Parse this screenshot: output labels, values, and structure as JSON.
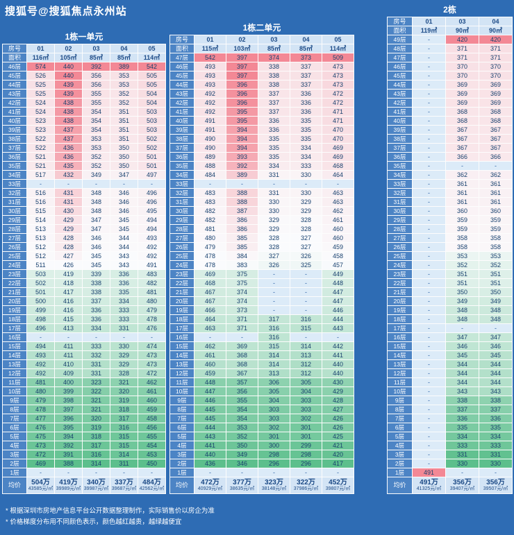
{
  "watermark": "搜狐号@搜狐焦点永州站",
  "labels": {
    "room": "房号",
    "area": "面积",
    "avg": "均价"
  },
  "colors": {
    "background": "#2e6cb4",
    "header_blue": "#4c84c5",
    "header_pale": "#d3e4f5",
    "empty_cell": "#dcebf8",
    "high_price": "#f38895",
    "mid_price": "#fafbfd",
    "low_price": "#5cbf8c"
  },
  "notes": [
    "* 根据深圳市房地产信息平台公开数据整理制作，实际销售价以房企为准",
    "* 价格梯度分布用不同颜色表示，颜色越红越贵，越绿越便宜"
  ],
  "chart_data": [
    {
      "type": "heatmap",
      "title": "1栋一单元",
      "rooms": [
        "01",
        "02",
        "03",
        "04",
        "05"
      ],
      "areas": [
        "116㎡",
        "105㎡",
        "85㎡",
        "85㎡",
        "114㎡"
      ],
      "rows": [
        [
          "46层",
          574,
          440,
          392,
          389,
          542
        ],
        [
          "45层",
          526,
          440,
          356,
          353,
          505
        ],
        [
          "44层",
          525,
          439,
          356,
          353,
          505
        ],
        [
          "43层",
          525,
          439,
          355,
          352,
          504
        ],
        [
          "42层",
          524,
          438,
          355,
          352,
          504
        ],
        [
          "41层",
          524,
          438,
          354,
          351,
          503
        ],
        [
          "40层",
          523,
          438,
          354,
          351,
          503
        ],
        [
          "39层",
          523,
          437,
          354,
          351,
          503
        ],
        [
          "38层",
          522,
          437,
          353,
          351,
          502
        ],
        [
          "37层",
          522,
          436,
          353,
          350,
          502
        ],
        [
          "36层",
          521,
          436,
          352,
          350,
          501
        ],
        [
          "35层",
          521,
          435,
          352,
          350,
          501
        ],
        [
          "34层",
          517,
          432,
          349,
          347,
          497
        ],
        [
          "33层",
          "-",
          "-",
          "-",
          "-",
          "-"
        ],
        [
          "32层",
          516,
          431,
          348,
          346,
          496
        ],
        [
          "31层",
          516,
          431,
          348,
          346,
          496
        ],
        [
          "30层",
          515,
          430,
          348,
          346,
          495
        ],
        [
          "29层",
          514,
          429,
          347,
          345,
          494
        ],
        [
          "28层",
          513,
          429,
          347,
          345,
          494
        ],
        [
          "27层",
          513,
          428,
          346,
          344,
          493
        ],
        [
          "26层",
          512,
          428,
          346,
          344,
          492
        ],
        [
          "25层",
          512,
          427,
          345,
          343,
          492
        ],
        [
          "24层",
          511,
          426,
          345,
          343,
          491
        ],
        [
          "23层",
          503,
          419,
          339,
          336,
          483
        ],
        [
          "22层",
          502,
          418,
          338,
          336,
          482
        ],
        [
          "21层",
          501,
          417,
          338,
          335,
          481
        ],
        [
          "20层",
          500,
          416,
          337,
          334,
          480
        ],
        [
          "19层",
          499,
          416,
          336,
          333,
          479
        ],
        [
          "18层",
          498,
          415,
          336,
          333,
          478
        ],
        [
          "17层",
          496,
          413,
          334,
          331,
          476
        ],
        [
          "16层",
          "-",
          "-",
          "-",
          "-",
          "-"
        ],
        [
          "15层",
          494,
          411,
          333,
          330,
          474
        ],
        [
          "14层",
          493,
          411,
          332,
          329,
          473
        ],
        [
          "13层",
          492,
          410,
          331,
          329,
          473
        ],
        [
          "12层",
          492,
          409,
          331,
          328,
          472
        ],
        [
          "11层",
          481,
          400,
          323,
          321,
          462
        ],
        [
          "10层",
          480,
          399,
          322,
          320,
          461
        ],
        [
          "9层",
          479,
          398,
          321,
          319,
          460
        ],
        [
          "8层",
          478,
          397,
          321,
          318,
          459
        ],
        [
          "7层",
          477,
          396,
          320,
          317,
          458
        ],
        [
          "6层",
          476,
          395,
          319,
          316,
          456
        ],
        [
          "5层",
          475,
          394,
          318,
          315,
          455
        ],
        [
          "4层",
          473,
          392,
          317,
          315,
          454
        ],
        [
          "3层",
          472,
          391,
          316,
          314,
          453
        ],
        [
          "2层",
          469,
          388,
          314,
          311,
          450
        ],
        [
          "1层",
          "-",
          "-",
          "-",
          "-",
          "-"
        ]
      ],
      "avg_total": [
        "504万",
        "419万",
        "340万",
        "337万",
        "484万"
      ],
      "avg_unit": [
        "43585元/㎡",
        "39989元/㎡",
        "39987元/㎡",
        "39687元/㎡",
        "42562元/㎡"
      ]
    },
    {
      "type": "heatmap",
      "title": "1栋二单元",
      "rooms": [
        "01",
        "02",
        "03",
        "04",
        "05"
      ],
      "areas": [
        "115㎡",
        "103㎡",
        "85㎡",
        "85㎡",
        "114㎡"
      ],
      "rows": [
        [
          "47层",
          542,
          397,
          374,
          373,
          509
        ],
        [
          "46层",
          493,
          397,
          338,
          337,
          473
        ],
        [
          "45层",
          493,
          397,
          338,
          337,
          473
        ],
        [
          "44层",
          493,
          396,
          338,
          337,
          473
        ],
        [
          "43层",
          492,
          396,
          337,
          336,
          472
        ],
        [
          "42层",
          492,
          396,
          337,
          336,
          472
        ],
        [
          "41层",
          492,
          395,
          337,
          336,
          471
        ],
        [
          "40层",
          491,
          395,
          336,
          335,
          471
        ],
        [
          "39层",
          491,
          394,
          336,
          335,
          470
        ],
        [
          "38层",
          490,
          394,
          335,
          335,
          470
        ],
        [
          "37层",
          490,
          394,
          335,
          334,
          469
        ],
        [
          "36层",
          489,
          393,
          335,
          334,
          469
        ],
        [
          "35层",
          488,
          392,
          334,
          333,
          468
        ],
        [
          "34层",
          484,
          389,
          331,
          330,
          464
        ],
        [
          "33层",
          "-",
          "-",
          "-",
          "-",
          "-"
        ],
        [
          "32层",
          483,
          388,
          331,
          330,
          463
        ],
        [
          "31层",
          483,
          388,
          330,
          329,
          463
        ],
        [
          "30层",
          482,
          387,
          330,
          329,
          462
        ],
        [
          "29层",
          482,
          386,
          329,
          328,
          461
        ],
        [
          "28层",
          481,
          386,
          329,
          328,
          460
        ],
        [
          "27层",
          480,
          385,
          328,
          327,
          460
        ],
        [
          "26层",
          479,
          385,
          328,
          327,
          459
        ],
        [
          "25层",
          478,
          384,
          327,
          326,
          458
        ],
        [
          "24层",
          478,
          383,
          326,
          325,
          457
        ],
        [
          "23层",
          469,
          375,
          "-",
          "-",
          449
        ],
        [
          "22层",
          468,
          375,
          "-",
          "-",
          448
        ],
        [
          "21层",
          467,
          374,
          "-",
          "-",
          447
        ],
        [
          "20层",
          467,
          374,
          "-",
          "-",
          447
        ],
        [
          "19层",
          466,
          373,
          "-",
          "-",
          446
        ],
        [
          "18层",
          464,
          371,
          317,
          316,
          444
        ],
        [
          "17层",
          463,
          371,
          316,
          315,
          443
        ],
        [
          "16层",
          "-",
          "-",
          316,
          "-",
          "-"
        ],
        [
          "15层",
          462,
          369,
          315,
          314,
          442
        ],
        [
          "14层",
          461,
          368,
          314,
          313,
          441
        ],
        [
          "13层",
          460,
          368,
          314,
          312,
          440
        ],
        [
          "12层",
          459,
          367,
          313,
          312,
          440
        ],
        [
          "11层",
          448,
          357,
          306,
          305,
          430
        ],
        [
          "10层",
          447,
          356,
          305,
          304,
          429
        ],
        [
          "9层",
          446,
          355,
          304,
          303,
          428
        ],
        [
          "8层",
          445,
          354,
          303,
          303,
          427
        ],
        [
          "7层",
          445,
          354,
          303,
          302,
          426
        ],
        [
          "6层",
          444,
          353,
          302,
          301,
          426
        ],
        [
          "5层",
          443,
          352,
          301,
          301,
          425
        ],
        [
          "4层",
          441,
          350,
          300,
          299,
          421
        ],
        [
          "3层",
          440,
          349,
          298,
          298,
          420
        ],
        [
          "2层",
          436,
          346,
          296,
          296,
          417
        ],
        [
          "1层",
          "-",
          "-",
          "-",
          "-",
          "-"
        ]
      ],
      "avg_total": [
        "472万",
        "377万",
        "323万",
        "322万",
        "452万"
      ],
      "avg_unit": [
        "40929元/㎡",
        "38635元/㎡",
        "38148元/㎡",
        "37986元/㎡",
        "39807元/㎡"
      ]
    },
    {
      "type": "heatmap",
      "title": "2栋",
      "rooms": [
        "01",
        "03",
        "04"
      ],
      "areas": [
        "119㎡",
        "90㎡",
        "90㎡"
      ],
      "rows": [
        [
          "49层",
          "-",
          420,
          420
        ],
        [
          "48层",
          "-",
          371,
          371
        ],
        [
          "47层",
          "-",
          371,
          371
        ],
        [
          "46层",
          "-",
          370,
          370
        ],
        [
          "45层",
          "-",
          370,
          370
        ],
        [
          "44层",
          "-",
          369,
          369
        ],
        [
          "43层",
          "-",
          369,
          369
        ],
        [
          "42层",
          "-",
          369,
          369
        ],
        [
          "41层",
          "-",
          368,
          368
        ],
        [
          "40层",
          "-",
          368,
          368
        ],
        [
          "39层",
          "-",
          367,
          367
        ],
        [
          "38层",
          "-",
          367,
          367
        ],
        [
          "37层",
          "-",
          367,
          367
        ],
        [
          "36层",
          "-",
          366,
          366
        ],
        [
          "35层",
          "-",
          "-",
          "-"
        ],
        [
          "34层",
          "-",
          362,
          362
        ],
        [
          "33层",
          "-",
          361,
          361
        ],
        [
          "32层",
          "-",
          361,
          361
        ],
        [
          "31层",
          "-",
          361,
          361
        ],
        [
          "30层",
          "-",
          360,
          360
        ],
        [
          "29层",
          "-",
          359,
          359
        ],
        [
          "28层",
          "-",
          359,
          359
        ],
        [
          "27层",
          "-",
          358,
          358
        ],
        [
          "26层",
          "-",
          358,
          358
        ],
        [
          "25层",
          "-",
          353,
          353
        ],
        [
          "24层",
          "-",
          352,
          352
        ],
        [
          "23层",
          "-",
          351,
          351
        ],
        [
          "22层",
          "-",
          351,
          351
        ],
        [
          "21层",
          "-",
          350,
          350
        ],
        [
          "20层",
          "-",
          349,
          349
        ],
        [
          "19层",
          "-",
          348,
          348
        ],
        [
          "18层",
          "-",
          348,
          348
        ],
        [
          "17层",
          "-",
          "-",
          "-"
        ],
        [
          "16层",
          "-",
          347,
          347
        ],
        [
          "15层",
          "-",
          346,
          346
        ],
        [
          "14层",
          "-",
          345,
          345
        ],
        [
          "13层",
          "-",
          344,
          344
        ],
        [
          "12层",
          "-",
          344,
          344
        ],
        [
          "11层",
          "-",
          344,
          344
        ],
        [
          "10层",
          "-",
          343,
          343
        ],
        [
          "9层",
          "-",
          338,
          338
        ],
        [
          "8层",
          "-",
          337,
          337
        ],
        [
          "7层",
          "-",
          336,
          336
        ],
        [
          "6层",
          "-",
          335,
          335
        ],
        [
          "5层",
          "-",
          334,
          334
        ],
        [
          "4层",
          "-",
          333,
          333
        ],
        [
          "3层",
          "-",
          331,
          331
        ],
        [
          "2层",
          "-",
          330,
          330
        ],
        [
          "1层",
          491,
          "-",
          "-"
        ]
      ],
      "avg_total": [
        "491万",
        "356万",
        "356万"
      ],
      "avg_unit": [
        "41325元/㎡",
        "39407元/㎡",
        "39507元/㎡"
      ]
    }
  ]
}
